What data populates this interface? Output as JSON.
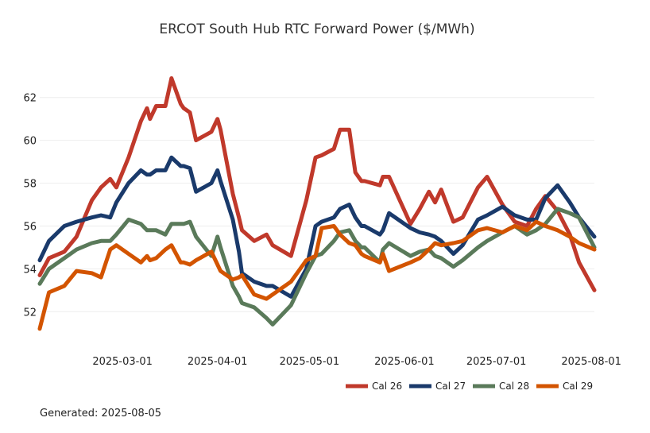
{
  "chart_data": {
    "type": "line",
    "title": "ERCOT South Hub RTC Forward Power ($/MWh)",
    "xlabel": "",
    "ylabel": "",
    "x_ticks": [
      "2025-03-01",
      "2025-04-01",
      "2025-05-01",
      "2025-06-01",
      "2025-07-01",
      "2025-08-01"
    ],
    "y_ticks": [
      52,
      54,
      56,
      58,
      60,
      62
    ],
    "xlim": [
      "2025-02-02",
      "2025-08-02"
    ],
    "ylim": [
      50.6,
      63.4
    ],
    "grid": "horizontal",
    "legend_position": "bottom-right",
    "series": [
      {
        "name": "Cal 26",
        "color": "#c0392b",
        "x": [
          "2025-02-02",
          "2025-02-05",
          "2025-02-10",
          "2025-02-14",
          "2025-02-19",
          "2025-02-22",
          "2025-02-25",
          "2025-02-27",
          "2025-03-03",
          "2025-03-07",
          "2025-03-09",
          "2025-03-10",
          "2025-03-12",
          "2025-03-15",
          "2025-03-17",
          "2025-03-20",
          "2025-03-21",
          "2025-03-23",
          "2025-03-25",
          "2025-03-30",
          "2025-04-01",
          "2025-04-02",
          "2025-04-06",
          "2025-04-08",
          "2025-04-09",
          "2025-04-13",
          "2025-04-17",
          "2025-04-19",
          "2025-04-25",
          "2025-04-30",
          "2025-05-03",
          "2025-05-05",
          "2025-05-09",
          "2025-05-11",
          "2025-05-14",
          "2025-05-16",
          "2025-05-18",
          "2025-05-19",
          "2025-05-24",
          "2025-05-25",
          "2025-05-27",
          "2025-06-03",
          "2025-06-06",
          "2025-06-09",
          "2025-06-11",
          "2025-06-13",
          "2025-06-17",
          "2025-06-20",
          "2025-06-25",
          "2025-06-28",
          "2025-07-03",
          "2025-07-07",
          "2025-07-11",
          "2025-07-14",
          "2025-07-17",
          "2025-07-21",
          "2025-07-25",
          "2025-07-28",
          "2025-08-02"
        ],
        "values": [
          53.7,
          54.5,
          54.8,
          55.5,
          57.2,
          57.8,
          58.2,
          57.8,
          59.2,
          60.9,
          61.5,
          61.0,
          61.6,
          61.6,
          62.9,
          61.7,
          61.5,
          61.3,
          60.0,
          60.4,
          61.0,
          60.5,
          57.5,
          56.4,
          55.8,
          55.3,
          55.6,
          55.1,
          54.6,
          57.2,
          59.2,
          59.3,
          59.6,
          60.5,
          60.5,
          58.5,
          58.1,
          58.1,
          57.9,
          58.3,
          58.3,
          56.1,
          56.8,
          57.6,
          57.1,
          57.7,
          56.2,
          56.4,
          57.8,
          58.3,
          57.0,
          56.2,
          56.0,
          56.8,
          57.4,
          56.7,
          55.6,
          54.3,
          53.0
        ]
      },
      {
        "name": "Cal 27",
        "color": "#1a3a6b",
        "x": [
          "2025-02-02",
          "2025-02-05",
          "2025-02-10",
          "2025-02-14",
          "2025-02-19",
          "2025-02-22",
          "2025-02-25",
          "2025-02-27",
          "2025-03-03",
          "2025-03-07",
          "2025-03-09",
          "2025-03-10",
          "2025-03-12",
          "2025-03-15",
          "2025-03-17",
          "2025-03-20",
          "2025-03-21",
          "2025-03-23",
          "2025-03-25",
          "2025-03-30",
          "2025-04-01",
          "2025-04-02",
          "2025-04-06",
          "2025-04-08",
          "2025-04-09",
          "2025-04-13",
          "2025-04-17",
          "2025-04-19",
          "2025-04-25",
          "2025-04-30",
          "2025-05-03",
          "2025-05-05",
          "2025-05-09",
          "2025-05-11",
          "2025-05-14",
          "2025-05-16",
          "2025-05-18",
          "2025-05-19",
          "2025-05-24",
          "2025-05-25",
          "2025-05-27",
          "2025-06-03",
          "2025-06-06",
          "2025-06-09",
          "2025-06-11",
          "2025-06-13",
          "2025-06-17",
          "2025-06-20",
          "2025-06-25",
          "2025-06-28",
          "2025-07-03",
          "2025-07-07",
          "2025-07-11",
          "2025-07-14",
          "2025-07-17",
          "2025-07-21",
          "2025-07-25",
          "2025-07-28",
          "2025-08-02"
        ],
        "values": [
          54.4,
          55.3,
          56.0,
          56.2,
          56.4,
          56.5,
          56.4,
          57.1,
          58.0,
          58.6,
          58.4,
          58.4,
          58.6,
          58.6,
          59.2,
          58.8,
          58.8,
          58.7,
          57.6,
          58.0,
          58.6,
          58.1,
          56.3,
          54.8,
          53.8,
          53.4,
          53.2,
          53.2,
          52.7,
          54.0,
          56.0,
          56.2,
          56.4,
          56.8,
          57.0,
          56.4,
          56.0,
          56.0,
          55.6,
          55.8,
          56.6,
          55.9,
          55.7,
          55.6,
          55.5,
          55.3,
          54.7,
          55.1,
          56.3,
          56.5,
          56.9,
          56.5,
          56.3,
          56.3,
          57.3,
          57.9,
          57.1,
          56.4,
          55.5
        ]
      },
      {
        "name": "Cal 28",
        "color": "#5a7a5a",
        "x": [
          "2025-02-02",
          "2025-02-05",
          "2025-02-10",
          "2025-02-14",
          "2025-02-19",
          "2025-02-22",
          "2025-02-25",
          "2025-02-27",
          "2025-03-03",
          "2025-03-07",
          "2025-03-09",
          "2025-03-10",
          "2025-03-12",
          "2025-03-15",
          "2025-03-17",
          "2025-03-20",
          "2025-03-21",
          "2025-03-23",
          "2025-03-25",
          "2025-03-30",
          "2025-04-01",
          "2025-04-02",
          "2025-04-06",
          "2025-04-08",
          "2025-04-09",
          "2025-04-13",
          "2025-04-17",
          "2025-04-19",
          "2025-04-25",
          "2025-04-30",
          "2025-05-03",
          "2025-05-05",
          "2025-05-09",
          "2025-05-11",
          "2025-05-14",
          "2025-05-16",
          "2025-05-18",
          "2025-05-19",
          "2025-05-24",
          "2025-05-25",
          "2025-05-27",
          "2025-06-03",
          "2025-06-06",
          "2025-06-09",
          "2025-06-11",
          "2025-06-13",
          "2025-06-17",
          "2025-06-20",
          "2025-06-25",
          "2025-06-28",
          "2025-07-03",
          "2025-07-07",
          "2025-07-11",
          "2025-07-14",
          "2025-07-17",
          "2025-07-21",
          "2025-07-25",
          "2025-07-28",
          "2025-08-02"
        ],
        "values": [
          53.3,
          54.0,
          54.5,
          54.9,
          55.2,
          55.3,
          55.3,
          55.6,
          56.3,
          56.1,
          55.8,
          55.8,
          55.8,
          55.6,
          56.1,
          56.1,
          56.1,
          56.2,
          55.5,
          54.6,
          55.5,
          55.0,
          53.2,
          52.7,
          52.4,
          52.2,
          51.7,
          51.4,
          52.3,
          53.8,
          54.6,
          54.7,
          55.3,
          55.7,
          55.8,
          55.3,
          55.0,
          55.0,
          54.3,
          54.9,
          55.2,
          54.6,
          54.8,
          54.9,
          54.6,
          54.5,
          54.1,
          54.4,
          55.0,
          55.3,
          55.7,
          56.0,
          55.6,
          55.8,
          56.1,
          56.8,
          56.6,
          56.4,
          55.0
        ]
      },
      {
        "name": "Cal 29",
        "color": "#d35400",
        "x": [
          "2025-02-02",
          "2025-02-05",
          "2025-02-10",
          "2025-02-14",
          "2025-02-19",
          "2025-02-22",
          "2025-02-25",
          "2025-02-27",
          "2025-03-03",
          "2025-03-07",
          "2025-03-09",
          "2025-03-10",
          "2025-03-12",
          "2025-03-15",
          "2025-03-17",
          "2025-03-20",
          "2025-03-21",
          "2025-03-23",
          "2025-03-25",
          "2025-03-30",
          "2025-04-01",
          "2025-04-02",
          "2025-04-06",
          "2025-04-08",
          "2025-04-09",
          "2025-04-13",
          "2025-04-17",
          "2025-04-19",
          "2025-04-25",
          "2025-04-30",
          "2025-05-03",
          "2025-05-05",
          "2025-05-09",
          "2025-05-11",
          "2025-05-14",
          "2025-05-16",
          "2025-05-18",
          "2025-05-19",
          "2025-05-24",
          "2025-05-25",
          "2025-05-27",
          "2025-06-03",
          "2025-06-06",
          "2025-06-09",
          "2025-06-11",
          "2025-06-13",
          "2025-06-17",
          "2025-06-20",
          "2025-06-25",
          "2025-06-28",
          "2025-07-03",
          "2025-07-07",
          "2025-07-11",
          "2025-07-14",
          "2025-07-17",
          "2025-07-21",
          "2025-07-25",
          "2025-07-28",
          "2025-08-02"
        ],
        "values": [
          51.2,
          52.9,
          53.2,
          53.9,
          53.8,
          53.6,
          54.9,
          55.1,
          54.7,
          54.3,
          54.6,
          54.4,
          54.5,
          54.9,
          55.1,
          54.3,
          54.3,
          54.2,
          54.4,
          54.8,
          54.2,
          53.9,
          53.5,
          53.6,
          53.7,
          52.8,
          52.6,
          52.8,
          53.4,
          54.4,
          54.6,
          55.9,
          56.0,
          55.6,
          55.2,
          55.1,
          54.7,
          54.6,
          54.3,
          54.7,
          53.9,
          54.3,
          54.5,
          54.9,
          55.2,
          55.1,
          55.2,
          55.3,
          55.8,
          55.9,
          55.7,
          56.0,
          55.8,
          56.2,
          56.0,
          55.8,
          55.5,
          55.2,
          54.9
        ]
      }
    ]
  },
  "footer": {
    "generated": "Generated: 2025-08-05"
  }
}
